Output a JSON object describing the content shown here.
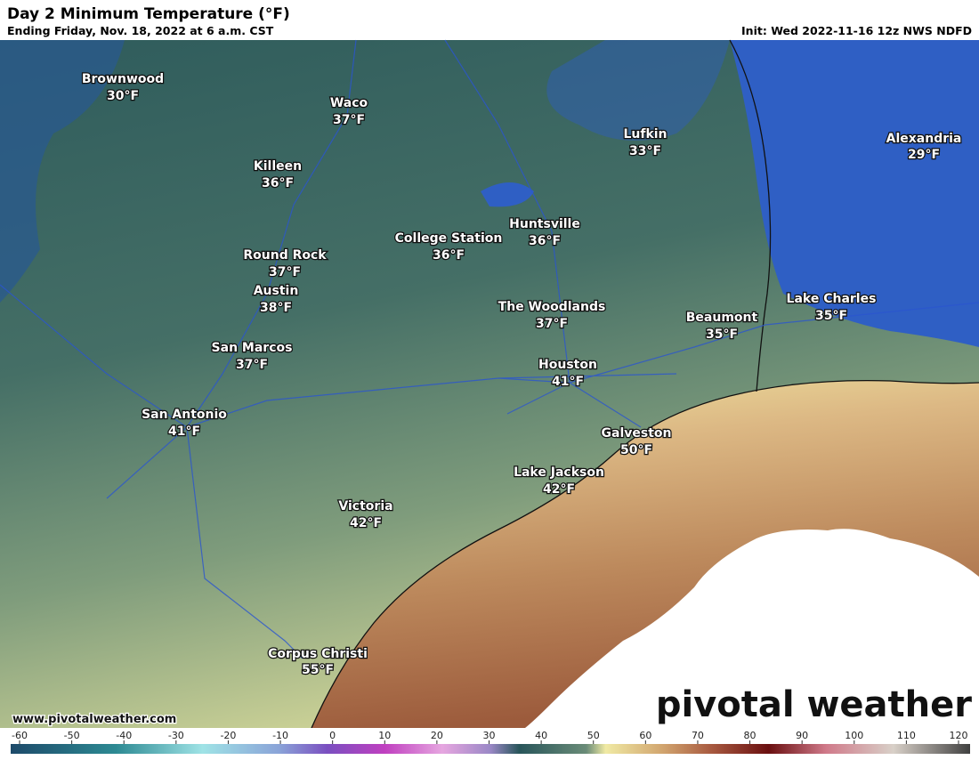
{
  "header": {
    "title": "Day 2 Minimum Temperature (°F)",
    "subtitle": "Ending Friday, Nov. 18, 2022 at 6 a.m. CST",
    "init": "Init: Wed 2022-11-16 12z NWS NDFD"
  },
  "cities": [
    {
      "name": "Brownwood",
      "temp": "30°F"
    },
    {
      "name": "Waco",
      "temp": "37°F"
    },
    {
      "name": "Killeen",
      "temp": "36°F"
    },
    {
      "name": "Round Rock",
      "temp": "37°F"
    },
    {
      "name": "Austin",
      "temp": "38°F"
    },
    {
      "name": "San Marcos",
      "temp": "37°F"
    },
    {
      "name": "San Antonio",
      "temp": "41°F"
    },
    {
      "name": "College Station",
      "temp": "36°F"
    },
    {
      "name": "Huntsville",
      "temp": "36°F"
    },
    {
      "name": "Lufkin",
      "temp": "33°F"
    },
    {
      "name": "Alexandria",
      "temp": "29°F"
    },
    {
      "name": "The Woodlands",
      "temp": "37°F"
    },
    {
      "name": "Houston",
      "temp": "41°F"
    },
    {
      "name": "Beaumont",
      "temp": "35°F"
    },
    {
      "name": "Lake Charles",
      "temp": "35°F"
    },
    {
      "name": "Galveston",
      "temp": "50°F"
    },
    {
      "name": "Lake Jackson",
      "temp": "42°F"
    },
    {
      "name": "Victoria",
      "temp": "42°F"
    },
    {
      "name": "Corpus Christi",
      "temp": "55°F"
    }
  ],
  "footer": {
    "url": "www.pivotalweather.com",
    "brand": "pivotal weather"
  },
  "colorbar": {
    "ticks": [
      -60,
      -50,
      -40,
      -30,
      -20,
      -10,
      0,
      10,
      20,
      30,
      40,
      50,
      60,
      70,
      80,
      90,
      100,
      110,
      120
    ]
  }
}
